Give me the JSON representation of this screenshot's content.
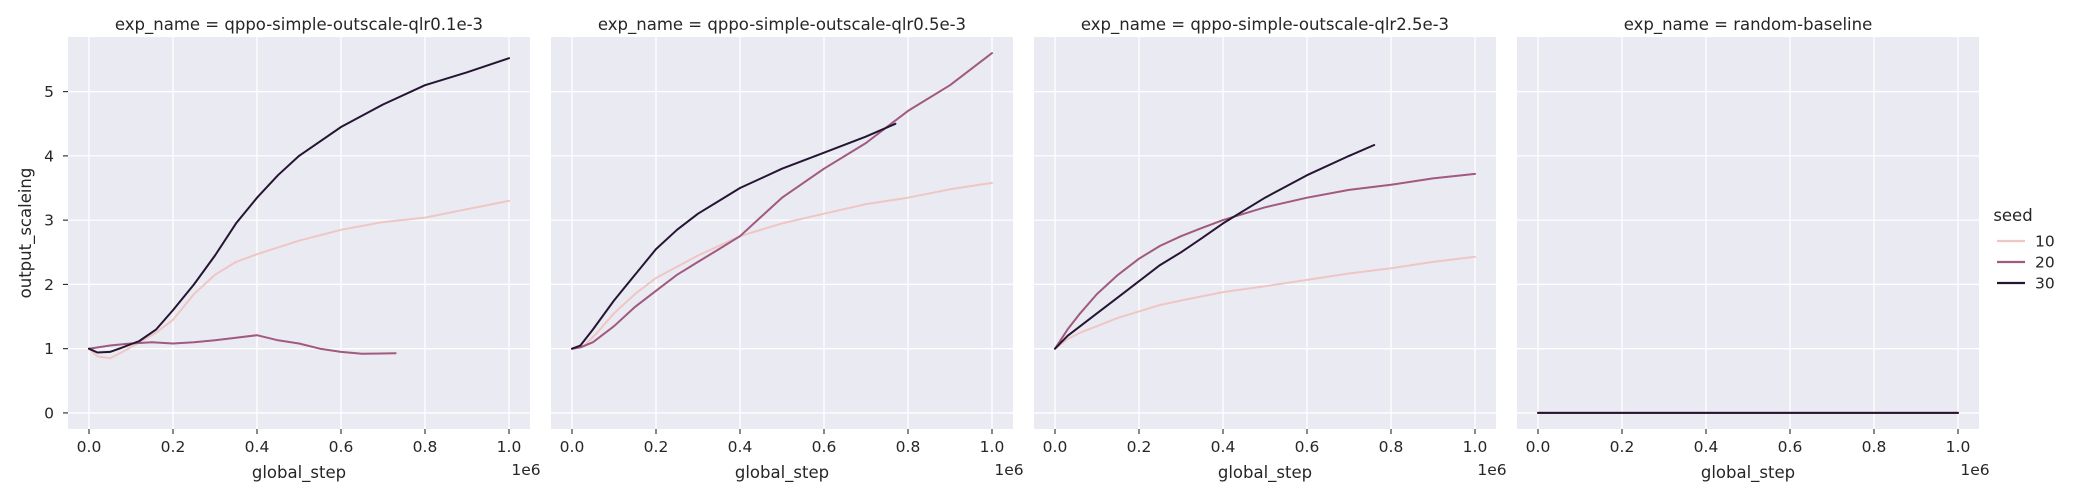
{
  "legend": {
    "title": "seed"
  },
  "colors": {
    "10": "#efc6c4",
    "20": "#a0597f",
    "30": "#251532",
    "background": "#eaeaf2",
    "grid": "#ffffff"
  },
  "chart_data": [
    {
      "type": "line",
      "title": "exp_name = qppo-simple-outscale-qlr0.1e-3",
      "xlabel": "global_step",
      "ylabel": "output_scaleing",
      "x_offset_label": "1e6",
      "xlim": [
        -0.05,
        1.05
      ],
      "ylim": [
        -0.25,
        5.85
      ],
      "xticks": [
        0.0,
        0.2,
        0.4,
        0.6,
        0.8,
        1.0
      ],
      "yticks": [
        0,
        1,
        2,
        3,
        4,
        5
      ],
      "legend": "right",
      "grid": true,
      "series": [
        {
          "name": "10",
          "x": [
            0,
            0.02,
            0.05,
            0.08,
            0.12,
            0.16,
            0.2,
            0.25,
            0.3,
            0.35,
            0.4,
            0.5,
            0.6,
            0.7,
            0.8,
            0.9,
            1.0
          ],
          "y": [
            1.0,
            0.88,
            0.85,
            0.95,
            1.1,
            1.25,
            1.45,
            1.85,
            2.15,
            2.35,
            2.47,
            2.68,
            2.85,
            2.97,
            3.04,
            3.17,
            3.3
          ]
        },
        {
          "name": "20",
          "x": [
            0,
            0.05,
            0.1,
            0.15,
            0.2,
            0.25,
            0.3,
            0.35,
            0.4,
            0.45,
            0.5,
            0.55,
            0.6,
            0.65,
            0.73
          ],
          "y": [
            1.0,
            1.05,
            1.08,
            1.1,
            1.08,
            1.1,
            1.13,
            1.17,
            1.21,
            1.13,
            1.08,
            1.0,
            0.95,
            0.92,
            0.93
          ]
        },
        {
          "name": "30",
          "x": [
            0,
            0.02,
            0.05,
            0.08,
            0.12,
            0.16,
            0.2,
            0.25,
            0.3,
            0.35,
            0.4,
            0.45,
            0.5,
            0.6,
            0.7,
            0.8,
            0.9,
            1.0
          ],
          "y": [
            1.0,
            0.94,
            0.95,
            1.02,
            1.12,
            1.3,
            1.6,
            2.0,
            2.45,
            2.95,
            3.35,
            3.7,
            4.0,
            4.45,
            4.8,
            5.1,
            5.3,
            5.52
          ]
        }
      ]
    },
    {
      "type": "line",
      "title": "exp_name = qppo-simple-outscale-qlr0.5e-3",
      "xlabel": "global_step",
      "ylabel": "",
      "x_offset_label": "1e6",
      "xlim": [
        -0.05,
        1.05
      ],
      "ylim": [
        -0.25,
        5.85
      ],
      "xticks": [
        0.0,
        0.2,
        0.4,
        0.6,
        0.8,
        1.0
      ],
      "yticks": [
        0,
        1,
        2,
        3,
        4,
        5
      ],
      "legend": "right",
      "grid": true,
      "series": [
        {
          "name": "10",
          "x": [
            0,
            0.03,
            0.06,
            0.1,
            0.15,
            0.2,
            0.3,
            0.4,
            0.5,
            0.6,
            0.7,
            0.8,
            0.9,
            1.0
          ],
          "y": [
            1.0,
            1.05,
            1.25,
            1.55,
            1.85,
            2.1,
            2.45,
            2.75,
            2.95,
            3.1,
            3.25,
            3.35,
            3.48,
            3.58
          ]
        },
        {
          "name": "20",
          "x": [
            0,
            0.02,
            0.05,
            0.1,
            0.15,
            0.2,
            0.25,
            0.3,
            0.35,
            0.4,
            0.45,
            0.5,
            0.6,
            0.7,
            0.8,
            0.9,
            1.0
          ],
          "y": [
            1.0,
            1.02,
            1.1,
            1.35,
            1.65,
            1.9,
            2.15,
            2.35,
            2.55,
            2.75,
            3.05,
            3.35,
            3.8,
            4.2,
            4.7,
            5.1,
            5.6
          ]
        },
        {
          "name": "30",
          "x": [
            0,
            0.02,
            0.05,
            0.1,
            0.15,
            0.2,
            0.25,
            0.3,
            0.35,
            0.4,
            0.45,
            0.5,
            0.6,
            0.7,
            0.77
          ],
          "y": [
            1.0,
            1.05,
            1.3,
            1.75,
            2.15,
            2.55,
            2.85,
            3.1,
            3.3,
            3.5,
            3.65,
            3.8,
            4.05,
            4.3,
            4.5
          ]
        }
      ]
    },
    {
      "type": "line",
      "title": "exp_name = qppo-simple-outscale-qlr2.5e-3",
      "xlabel": "global_step",
      "ylabel": "",
      "x_offset_label": "1e6",
      "xlim": [
        -0.05,
        1.05
      ],
      "ylim": [
        -0.25,
        5.85
      ],
      "xticks": [
        0.0,
        0.2,
        0.4,
        0.6,
        0.8,
        1.0
      ],
      "yticks": [
        0,
        1,
        2,
        3,
        4,
        5
      ],
      "legend": "right",
      "grid": true,
      "series": [
        {
          "name": "10",
          "x": [
            0,
            0.03,
            0.06,
            0.1,
            0.15,
            0.2,
            0.25,
            0.3,
            0.4,
            0.5,
            0.6,
            0.7,
            0.8,
            0.9,
            1.0
          ],
          "y": [
            1.0,
            1.15,
            1.25,
            1.35,
            1.48,
            1.58,
            1.68,
            1.75,
            1.88,
            1.97,
            2.07,
            2.17,
            2.25,
            2.35,
            2.43
          ]
        },
        {
          "name": "20",
          "x": [
            0,
            0.03,
            0.06,
            0.1,
            0.15,
            0.2,
            0.25,
            0.3,
            0.35,
            0.4,
            0.5,
            0.6,
            0.7,
            0.8,
            0.9,
            1.0
          ],
          "y": [
            1.0,
            1.3,
            1.55,
            1.85,
            2.15,
            2.4,
            2.6,
            2.75,
            2.88,
            3.0,
            3.2,
            3.35,
            3.47,
            3.55,
            3.65,
            3.72
          ]
        },
        {
          "name": "30",
          "x": [
            0,
            0.03,
            0.06,
            0.1,
            0.15,
            0.2,
            0.25,
            0.3,
            0.35,
            0.4,
            0.5,
            0.6,
            0.7,
            0.76
          ],
          "y": [
            1.0,
            1.2,
            1.35,
            1.55,
            1.8,
            2.05,
            2.3,
            2.5,
            2.72,
            2.95,
            3.35,
            3.7,
            4.0,
            4.17
          ]
        }
      ]
    },
    {
      "type": "line",
      "title": "exp_name = random-baseline",
      "xlabel": "global_step",
      "ylabel": "",
      "x_offset_label": "1e6",
      "xlim": [
        -0.05,
        1.05
      ],
      "ylim": [
        -0.25,
        5.85
      ],
      "xticks": [
        0.0,
        0.2,
        0.4,
        0.6,
        0.8,
        1.0
      ],
      "yticks": [
        0,
        1,
        2,
        3,
        4,
        5
      ],
      "legend": "right",
      "grid": true,
      "series": [
        {
          "name": "10",
          "x": [
            0,
            1.0
          ],
          "y": [
            0,
            0
          ]
        },
        {
          "name": "20",
          "x": [
            0,
            1.0
          ],
          "y": [
            0,
            0
          ]
        },
        {
          "name": "30",
          "x": [
            0,
            1.0
          ],
          "y": [
            0,
            0
          ]
        }
      ]
    }
  ]
}
